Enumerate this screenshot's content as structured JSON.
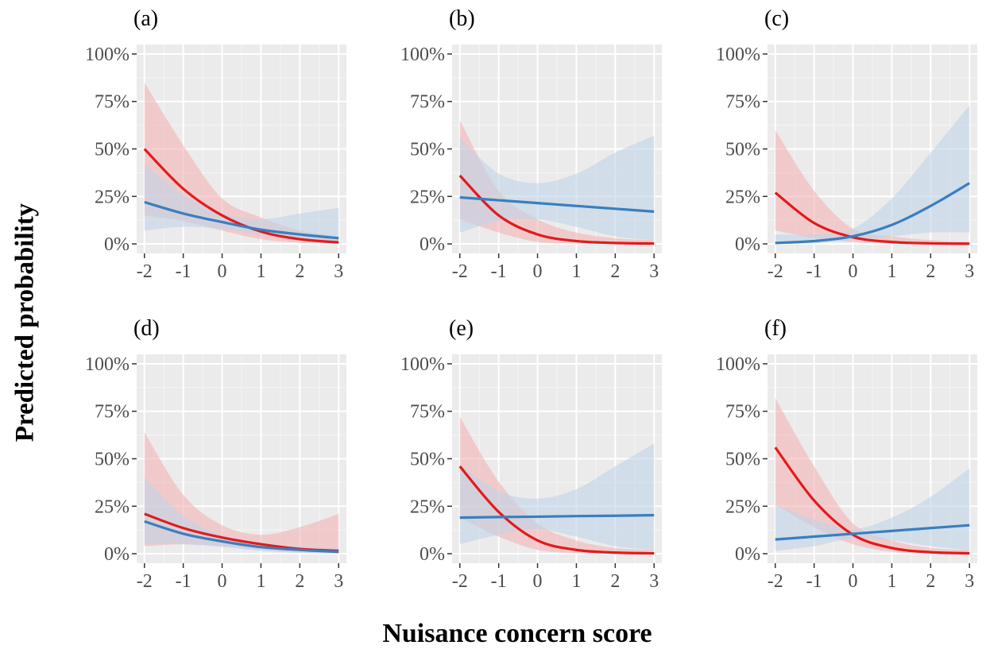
{
  "figure": {
    "ylabel": "Predicted probability",
    "xlabel": "Nuisance concern score"
  },
  "chart_data": [
    {
      "type": "line",
      "title": "(a)",
      "x": [
        -2,
        -1,
        0,
        1,
        2,
        3
      ],
      "xlim": [
        -2.2,
        3.2
      ],
      "ylim": [
        -5,
        105
      ],
      "y_ticks": [
        "0%",
        "25%",
        "50%",
        "75%",
        "100%"
      ],
      "x_ticks": [
        "-2",
        "-1",
        "0",
        "1",
        "2",
        "3"
      ],
      "grid": true,
      "series": [
        {
          "color": "#e31a1c",
          "fill": "#f4b4b6",
          "values": [
            50,
            29,
            15,
            6.5,
            2.5,
            0.8
          ],
          "lower": [
            15,
            12,
            7,
            2.5,
            0.6,
            0.1
          ],
          "upper": [
            85,
            52,
            24,
            14,
            7,
            4
          ]
        },
        {
          "color": "#3a7ebf",
          "fill": "#bfd3e6",
          "values": [
            22,
            16,
            11.5,
            7.5,
            5,
            3
          ],
          "lower": [
            7,
            9,
            8,
            5,
            2.5,
            1
          ],
          "upper": [
            42,
            26,
            16,
            13,
            16,
            19
          ]
        }
      ]
    },
    {
      "type": "line",
      "title": "(b)",
      "x": [
        -2,
        -1,
        0,
        1,
        2,
        3
      ],
      "xlim": [
        -2.2,
        3.2
      ],
      "ylim": [
        -5,
        105
      ],
      "y_ticks": [
        "0%",
        "25%",
        "50%",
        "75%",
        "100%"
      ],
      "x_ticks": [
        "-2",
        "-1",
        "0",
        "1",
        "2",
        "3"
      ],
      "grid": true,
      "series": [
        {
          "color": "#e31a1c",
          "fill": "#f4b4b6",
          "values": [
            36,
            15,
            5,
            1.5,
            0.5,
            0.2
          ],
          "lower": [
            13,
            6,
            1,
            0.2,
            0,
            0
          ],
          "upper": [
            65,
            28,
            13,
            6,
            3,
            2
          ]
        },
        {
          "color": "#3a7ebf",
          "fill": "#bfd3e6",
          "values": [
            24.5,
            23,
            21.5,
            20,
            18.5,
            17
          ],
          "lower": [
            6,
            12,
            13,
            9,
            4,
            2
          ],
          "upper": [
            56,
            37,
            32,
            37,
            48,
            57
          ]
        }
      ]
    },
    {
      "type": "line",
      "title": "(c)",
      "x": [
        -2,
        -1,
        0,
        1,
        2,
        3
      ],
      "xlim": [
        -2.2,
        3.2
      ],
      "ylim": [
        -5,
        105
      ],
      "y_ticks": [
        "0%",
        "25%",
        "50%",
        "75%",
        "100%"
      ],
      "x_ticks": [
        "-2",
        "-1",
        "0",
        "1",
        "2",
        "3"
      ],
      "grid": true,
      "series": [
        {
          "color": "#e31a1c",
          "fill": "#f4b4b6",
          "values": [
            27,
            11,
            3.5,
            1,
            0.3,
            0.1
          ],
          "lower": [
            7,
            3,
            1,
            0.1,
            0,
            0
          ],
          "upper": [
            60,
            28,
            8,
            4,
            2,
            1
          ]
        },
        {
          "color": "#3a7ebf",
          "fill": "#bfd3e6",
          "values": [
            0.5,
            1.5,
            4,
            10,
            20,
            32
          ],
          "lower": [
            0,
            0.3,
            2,
            4,
            6,
            6
          ],
          "upper": [
            5,
            5,
            8,
            24,
            48,
            73
          ]
        }
      ]
    },
    {
      "type": "line",
      "title": "(d)",
      "x": [
        -2,
        -1,
        0,
        1,
        2,
        3
      ],
      "xlim": [
        -2.2,
        3.2
      ],
      "ylim": [
        -5,
        105
      ],
      "y_ticks": [
        "0%",
        "25%",
        "50%",
        "75%",
        "100%"
      ],
      "x_ticks": [
        "-2",
        "-1",
        "0",
        "1",
        "2",
        "3"
      ],
      "grid": true,
      "series": [
        {
          "color": "#e31a1c",
          "fill": "#f4b4b6",
          "values": [
            21,
            13.5,
            8.5,
            5,
            2.5,
            1.5
          ],
          "lower": [
            4,
            5,
            4,
            2,
            0.5,
            0
          ],
          "upper": [
            64,
            31,
            15,
            10,
            14,
            21
          ]
        },
        {
          "color": "#3a7ebf",
          "fill": "#bfd3e6",
          "values": [
            17,
            10.5,
            6.5,
            3.5,
            2,
            1
          ],
          "lower": [
            5,
            5,
            3.5,
            1.5,
            0.5,
            0.2
          ],
          "upper": [
            40,
            20,
            10,
            6,
            4,
            3
          ]
        }
      ]
    },
    {
      "type": "line",
      "title": "(e)",
      "x": [
        -2,
        -1,
        0,
        1,
        2,
        3
      ],
      "xlim": [
        -2.2,
        3.2
      ],
      "ylim": [
        -5,
        105
      ],
      "y_ticks": [
        "0%",
        "25%",
        "50%",
        "75%",
        "100%"
      ],
      "x_ticks": [
        "-2",
        "-1",
        "0",
        "1",
        "2",
        "3"
      ],
      "grid": true,
      "series": [
        {
          "color": "#e31a1c",
          "fill": "#f4b4b6",
          "values": [
            46,
            22,
            7,
            2,
            0.6,
            0.2
          ],
          "lower": [
            19,
            9,
            2,
            0.3,
            0,
            0
          ],
          "upper": [
            72,
            38,
            16,
            7,
            3,
            2
          ]
        },
        {
          "color": "#3a7ebf",
          "fill": "#bfd3e6",
          "values": [
            19,
            19.3,
            19.5,
            19.8,
            20,
            20.3
          ],
          "lower": [
            5,
            10,
            13,
            9,
            4,
            2
          ],
          "upper": [
            47,
            33,
            29,
            34,
            46,
            58
          ]
        }
      ]
    },
    {
      "type": "line",
      "title": "(f)",
      "x": [
        -2,
        -1,
        0,
        1,
        2,
        3
      ],
      "xlim": [
        -2.2,
        3.2
      ],
      "ylim": [
        -5,
        105
      ],
      "y_ticks": [
        "0%",
        "25%",
        "50%",
        "75%",
        "100%"
      ],
      "x_ticks": [
        "-2",
        "-1",
        "0",
        "1",
        "2",
        "3"
      ],
      "grid": true,
      "series": [
        {
          "color": "#e31a1c",
          "fill": "#f4b4b6",
          "values": [
            56,
            28,
            10,
            3,
            0.8,
            0.2
          ],
          "lower": [
            26,
            14,
            5,
            1,
            0.1,
            0
          ],
          "upper": [
            82,
            46,
            16,
            7,
            3,
            2
          ]
        },
        {
          "color": "#3a7ebf",
          "fill": "#bfd3e6",
          "values": [
            7.5,
            9,
            10.5,
            12,
            13.5,
            15
          ],
          "lower": [
            1.5,
            4,
            8,
            7,
            4,
            2
          ],
          "upper": [
            26,
            18,
            13,
            19,
            30,
            45
          ]
        }
      ]
    }
  ]
}
